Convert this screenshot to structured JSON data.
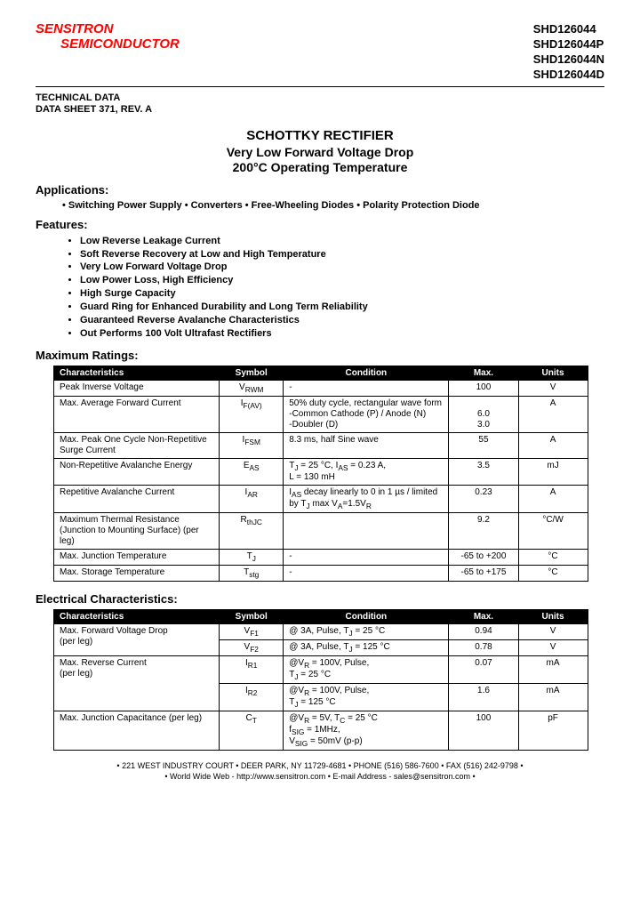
{
  "header": {
    "logo_line1": "SENSITRON",
    "logo_line2": "SEMICONDUCTOR",
    "part_numbers": [
      "SHD126044",
      "SHD126044P",
      "SHD126044N",
      "SHD126044D"
    ],
    "tech_data_line1": "TECHNICAL DATA",
    "tech_data_line2": "DATA SHEET 371, REV. A"
  },
  "title": {
    "line1": "SCHOTTKY RECTIFIER",
    "line2": "Very Low Forward Voltage Drop",
    "line3": "200°C Operating Temperature"
  },
  "applications": {
    "heading": "Applications:",
    "items_text": "•  Switching Power Supply  •  Converters  •  Free-Wheeling Diodes  •  Polarity Protection Diode"
  },
  "features": {
    "heading": "Features:",
    "items": [
      "Low Reverse Leakage Current",
      "Soft Reverse Recovery at Low and High Temperature",
      "Very Low Forward Voltage Drop",
      "Low Power Loss, High Efficiency",
      "High Surge Capacity",
      "Guard Ring for Enhanced Durability and Long Term Reliability",
      "Guaranteed Reverse Avalanche Characteristics",
      "Out Performs 100 Volt Ultrafast Rectifiers"
    ]
  },
  "max_ratings": {
    "heading": "Maximum Ratings:",
    "columns": [
      "Characteristics",
      "Symbol",
      "Condition",
      "Max.",
      "Units"
    ],
    "col_widths": [
      "31%",
      "12%",
      "31%",
      "13%",
      "13%"
    ],
    "rows": [
      {
        "c": "Peak Inverse Voltage",
        "s": "V<sub>RWM</sub>",
        "cond": "-",
        "max": "100",
        "u": "V"
      },
      {
        "c": "Max. Average Forward Current",
        "s": "I<sub>F(AV)</sub>",
        "cond": "50% duty cycle, rectangular wave form<br>-Common Cathode (P) / Anode (N)<br>-Doubler (D)",
        "max": "<br>6.0<br>3.0",
        "u": "A"
      },
      {
        "c": "Max. Peak One Cycle Non-Repetitive Surge Current",
        "s": "I<sub>FSM</sub>",
        "cond": "8.3 ms, half Sine wave",
        "max": "55",
        "u": "A"
      },
      {
        "c": "Non-Repetitive Avalanche Energy",
        "s": "E<sub>AS</sub>",
        "cond": "T<sub>J</sub> = 25 °C, I<sub>AS</sub> = 0.23 A,<br>L = 130 mH",
        "max": "3.5",
        "u": "mJ"
      },
      {
        "c": "Repetitive Avalanche Current",
        "s": "I<sub>AR</sub>",
        "cond": "I<sub>AS</sub> decay linearly to 0 in 1 µs / limited by T<sub>J</sub> max V<sub>A</sub>=1.5V<sub>R</sub>",
        "max": "0.23",
        "u": "A"
      },
      {
        "c": "Maximum Thermal Resistance (Junction to Mounting Surface) (per leg)",
        "s": "R<sub>thJC</sub>",
        "cond": "",
        "max": "9.2",
        "u": "°C/W"
      },
      {
        "c": "Max. Junction Temperature",
        "s": "T<sub>J</sub>",
        "cond": "-",
        "max": "-65 to +200",
        "u": "°C"
      },
      {
        "c": "Max. Storage Temperature",
        "s": "T<sub>stg</sub>",
        "cond": "-",
        "max": "-65 to +175",
        "u": "°C"
      }
    ]
  },
  "elec_char": {
    "heading": "Electrical Characteristics:",
    "columns": [
      "Characteristics",
      "Symbol",
      "Condition",
      "Max.",
      "Units"
    ],
    "col_widths": [
      "31%",
      "12%",
      "31%",
      "13%",
      "13%"
    ],
    "rows": [
      {
        "c": "Max. Forward Voltage Drop",
        "s": "V<sub>F1</sub>",
        "cond": "@ 3A, Pulse, T<sub>J</sub> = 25 °C",
        "max": "0.94",
        "u": "V",
        "rowspan_c": 2,
        "c_extra": "(per leg)"
      },
      {
        "c": "",
        "s": "V<sub>F2</sub>",
        "cond": "@ 3A, Pulse, T<sub>J</sub> = 125 °C",
        "max": "0.78",
        "u": "V"
      },
      {
        "c": "Max. Reverse Current",
        "s": "I<sub>R1</sub>",
        "cond": "@V<sub>R</sub> = 100V, Pulse,<br>T<sub>J</sub> = 25 °C",
        "max": "0.07",
        "u": "mA",
        "rowspan_c": 2,
        "c_extra": "(per leg)"
      },
      {
        "c": "",
        "s": "I<sub>R2</sub>",
        "cond": "@V<sub>R</sub> = 100V, Pulse,<br>T<sub>J</sub> = 125 °C",
        "max": "1.6",
        "u": "mA"
      },
      {
        "c": "Max. Junction Capacitance (per leg)",
        "s": "C<sub>T</sub>",
        "cond": "@V<sub>R</sub> = 5V, T<sub>C</sub> = 25 °C<br>f<sub>SIG</sub> = 1MHz,<br>V<sub>SIG</sub> = 50mV (p-p)",
        "max": "100",
        "u": "pF"
      }
    ]
  },
  "footer": {
    "line1": "• 221 WEST INDUSTRY COURT • DEER PARK, NY 11729-4681 • PHONE (516) 586-7600 • FAX (516) 242-9798 •",
    "line2": "• World Wide Web - http://www.sensitron.com • E-mail Address - sales@sensitron.com •"
  },
  "colors": {
    "logo": "#ff0000",
    "text": "#000000",
    "table_header_bg": "#000000",
    "table_header_fg": "#ffffff",
    "border": "#000000",
    "background": "#ffffff"
  },
  "fonts": {
    "body": "Arial, Helvetica, sans-serif",
    "section_head_size": 13,
    "body_size": 11,
    "table_size": 10
  }
}
